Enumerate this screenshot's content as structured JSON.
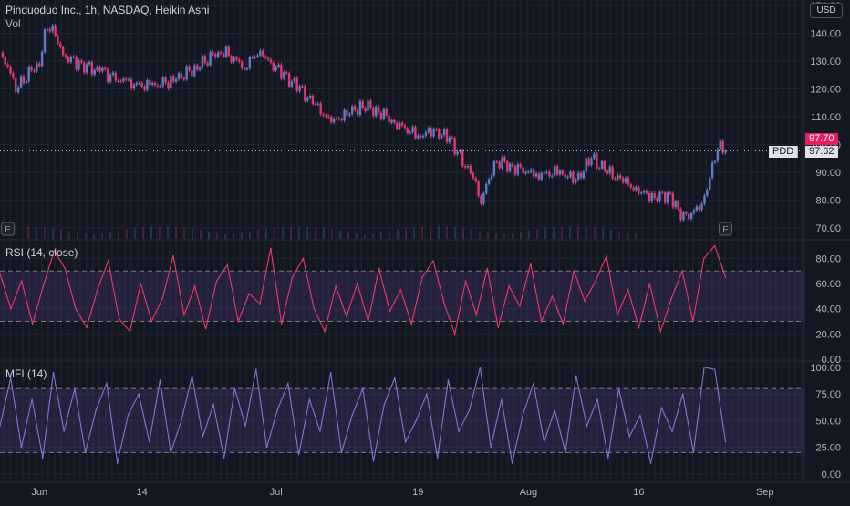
{
  "header": {
    "title": "Pinduoduo Inc., 1h, NASDAQ, Heikin Ashi",
    "volume_label": "Vol",
    "currency": "USD"
  },
  "price_tags": {
    "last_price": "97.70",
    "symbol": "PDD",
    "symbol_price": "97.62"
  },
  "colors": {
    "background": "#131722",
    "up": "#5b7ec7",
    "down": "#e2386e",
    "rsi_line": "#f23869",
    "rsi_band": "#7e57c2",
    "mfi_line": "#8f6fd8",
    "grid": "#1f2430",
    "axis_text": "#b2b5be",
    "last_price": "#e91e63"
  },
  "panes": {
    "rsi": {
      "label": "RSI (14, close)"
    },
    "mfi": {
      "label": "MFI (14)"
    }
  },
  "markers": [
    {
      "label": "E",
      "date": "2021-05-28"
    },
    {
      "label": "E",
      "date": "2021-08-27"
    }
  ],
  "chart_data": [
    {
      "type": "candlestick",
      "title": "Pinduoduo Inc., 1h, NASDAQ, Heikin Ashi",
      "series": [
        {
          "name": "",
          "points": [
            [
              "2021-05-27",
              132
            ],
            [
              "2021-05-28",
              128
            ],
            [
              "2021-05-29",
              120
            ],
            [
              "2021-06-01",
              130
            ],
            [
              "2021-06-02",
              143
            ],
            [
              "2021-06-03",
              140
            ],
            [
              "2021-06-04",
              132
            ],
            [
              "2021-06-06",
              129
            ],
            [
              "2021-06-09",
              126
            ],
            [
              "2021-06-12",
              122
            ],
            [
              "2021-06-15",
              121
            ],
            [
              "2021-06-18",
              123
            ],
            [
              "2021-06-21",
              128
            ],
            [
              "2021-06-24",
              134
            ],
            [
              "2021-06-27",
              128
            ],
            [
              "2021-06-29",
              134
            ],
            [
              "2021-06-30",
              130
            ],
            [
              "2021-07-02",
              125
            ],
            [
              "2021-07-04",
              120
            ],
            [
              "2021-07-06",
              114
            ],
            [
              "2021-07-08",
              108
            ],
            [
              "2021-07-10",
              111
            ],
            [
              "2021-07-12",
              114
            ],
            [
              "2021-07-14",
              112
            ],
            [
              "2021-07-16",
              108
            ],
            [
              "2021-07-19",
              103
            ],
            [
              "2021-07-21",
              105
            ],
            [
              "2021-07-23",
              102
            ],
            [
              "2021-07-24",
              97
            ],
            [
              "2021-07-26",
              88
            ],
            [
              "2021-07-27",
              79
            ],
            [
              "2021-07-28",
              88
            ],
            [
              "2021-07-29",
              94
            ],
            [
              "2021-07-31",
              92
            ],
            [
              "2021-08-03",
              89
            ],
            [
              "2021-08-06",
              90
            ],
            [
              "2021-08-08",
              87
            ],
            [
              "2021-08-10",
              95
            ],
            [
              "2021-08-12",
              90
            ],
            [
              "2021-08-14",
              87
            ],
            [
              "2021-08-16",
              83
            ],
            [
              "2021-08-18",
              81
            ],
            [
              "2021-08-20",
              82
            ],
            [
              "2021-08-21",
              76
            ],
            [
              "2021-08-22",
              74
            ],
            [
              "2021-08-24",
              78
            ],
            [
              "2021-08-25",
              88
            ],
            [
              "2021-08-26",
              99
            ],
            [
              "2021-08-27",
              97.7
            ]
          ]
        }
      ],
      "y_ticks": [
        "70.00",
        "80.00",
        "90.00",
        "100.00",
        "110.00",
        "120.00",
        "130.00",
        "140.00",
        "150.00"
      ],
      "ylim": [
        66,
        152
      ],
      "x_ticks": [
        "Jun",
        "14",
        "Jul",
        "19",
        "Aug",
        "16",
        "Sep"
      ],
      "x_tick_dates": [
        "2021-06-01",
        "2021-06-14",
        "2021-07-01",
        "2021-07-19",
        "2021-08-02",
        "2021-08-16",
        "2021-09-01"
      ],
      "xlim": [
        "2021-05-27",
        "2021-09-06"
      ],
      "grid": true
    },
    {
      "type": "line",
      "title": "RSI (14, close)",
      "series": [
        {
          "name": "",
          "values": [
            68,
            40,
            62,
            28,
            58,
            86,
            72,
            40,
            25,
            55,
            78,
            32,
            22,
            60,
            30,
            48,
            82,
            35,
            58,
            24,
            62,
            75,
            30,
            52,
            44,
            88,
            28,
            65,
            80,
            40,
            22,
            58,
            34,
            60,
            30,
            72,
            38,
            55,
            28,
            65,
            78,
            45,
            20,
            62,
            35,
            72,
            25,
            58,
            42,
            76,
            30,
            50,
            28,
            70,
            46,
            62,
            82,
            35,
            55,
            25,
            60,
            22,
            48,
            70,
            30,
            80,
            90,
            65
          ],
          "start": "2021-05-27",
          "end": "2021-08-27"
        }
      ],
      "y_ticks": [
        "0.00",
        "20.00",
        "40.00",
        "60.00",
        "80.00"
      ],
      "ylim": [
        0,
        94
      ],
      "band": [
        30,
        70
      ]
    },
    {
      "type": "line",
      "title": "MFI (14)",
      "series": [
        {
          "name": "",
          "values": [
            45,
            90,
            25,
            70,
            15,
            95,
            40,
            80,
            20,
            60,
            85,
            10,
            55,
            75,
            30,
            88,
            20,
            50,
            92,
            35,
            65,
            15,
            80,
            45,
            98,
            25,
            60,
            85,
            18,
            70,
            40,
            95,
            20,
            55,
            80,
            12,
            65,
            90,
            30,
            50,
            75,
            15,
            88,
            40,
            60,
            100,
            25,
            70,
            10,
            55,
            85,
            30,
            60,
            20,
            92,
            45,
            70,
            15,
            80,
            35,
            55,
            10,
            62,
            40,
            75,
            20,
            100,
            98,
            30
          ],
          "start": "2021-05-27",
          "end": "2021-08-27"
        }
      ],
      "y_ticks": [
        "0.00",
        "25.00",
        "50.00",
        "75.00",
        "100.00"
      ],
      "ylim": [
        -7,
        105
      ],
      "band": [
        20,
        80
      ]
    }
  ]
}
